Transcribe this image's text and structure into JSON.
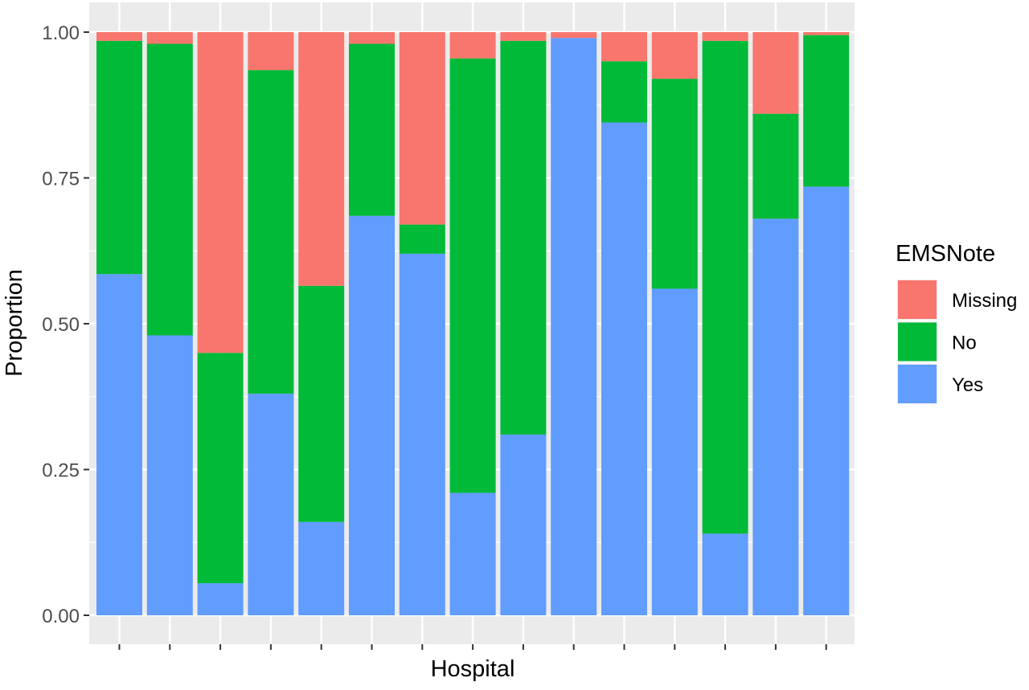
{
  "chart_data": {
    "type": "bar",
    "stacked": true,
    "title": "",
    "xlabel": "Hospital",
    "ylabel": "Proportion",
    "ylim": [
      0,
      1
    ],
    "yticks": [
      "0.00",
      "0.25",
      "0.50",
      "0.75",
      "1.00"
    ],
    "ytick_values": [
      0,
      0.25,
      0.5,
      0.75,
      1.0
    ],
    "x_tick_labels_visible": false,
    "bar_count": 15,
    "grid": true,
    "legend": {
      "title": "EMSNote",
      "placement": "right"
    },
    "series": [
      {
        "name": "Yes",
        "color": "#619CFF",
        "values": [
          0.585,
          0.48,
          0.055,
          0.38,
          0.16,
          0.685,
          0.62,
          0.21,
          0.31,
          0.99,
          0.845,
          0.56,
          0.14,
          0.68,
          0.735
        ]
      },
      {
        "name": "No",
        "color": "#00BA38",
        "values": [
          0.4,
          0.5,
          0.395,
          0.555,
          0.405,
          0.295,
          0.05,
          0.745,
          0.675,
          0.0,
          0.105,
          0.36,
          0.845,
          0.18,
          0.26
        ]
      },
      {
        "name": "Missing",
        "color": "#F8766D",
        "values": [
          0.015,
          0.02,
          0.55,
          0.065,
          0.435,
          0.02,
          0.33,
          0.045,
          0.015,
          0.01,
          0.05,
          0.08,
          0.015,
          0.14,
          0.005
        ]
      }
    ],
    "legend_order": [
      "Missing",
      "No",
      "Yes"
    ]
  },
  "colors": {
    "panel_background": "#EBEBEB",
    "grid": "#FFFFFF",
    "axis_text": "#4D4D4D",
    "axis_title": "#000000"
  }
}
